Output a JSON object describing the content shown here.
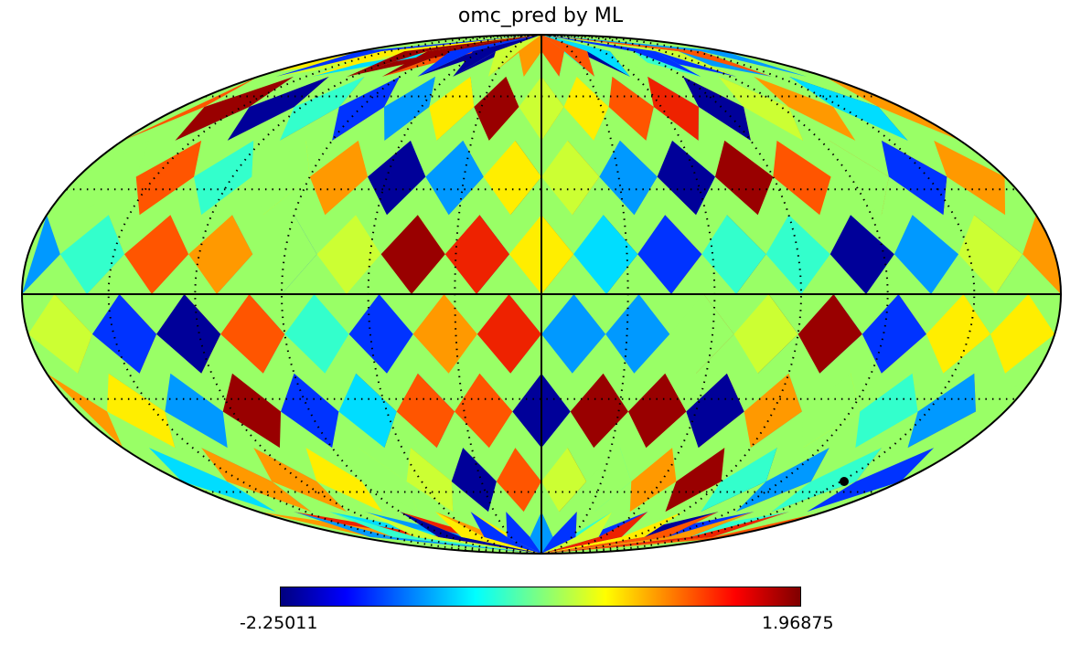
{
  "title": "omc_pred by ML",
  "colormap": {
    "name": "jet",
    "min_label": "-2.25011",
    "max_label": "1.96875",
    "stops": [
      "#00007f",
      "#0000ff",
      "#007fff",
      "#00ffff",
      "#7fff7f",
      "#ffff00",
      "#ff7f00",
      "#ff0000",
      "#7f0000"
    ]
  },
  "projection": "mollweide",
  "graticule": {
    "meridians_deg": [
      -150,
      -120,
      -90,
      -60,
      -30,
      0,
      30,
      60,
      90,
      120,
      150
    ],
    "parallels_deg": [
      -60,
      -30,
      0,
      30,
      60
    ]
  },
  "colors": {
    "dark_red": "#990000",
    "red": "#ee2200",
    "orange_red": "#ff5500",
    "orange": "#ff9900",
    "yellow": "#ffee00",
    "yellow_green": "#ccff33",
    "light_green": "#99ff66",
    "cyan_green": "#33ffcc",
    "cyan": "#00ddff",
    "sky_blue": "#0099ff",
    "blue": "#0033ff",
    "navy": "#000099"
  }
}
